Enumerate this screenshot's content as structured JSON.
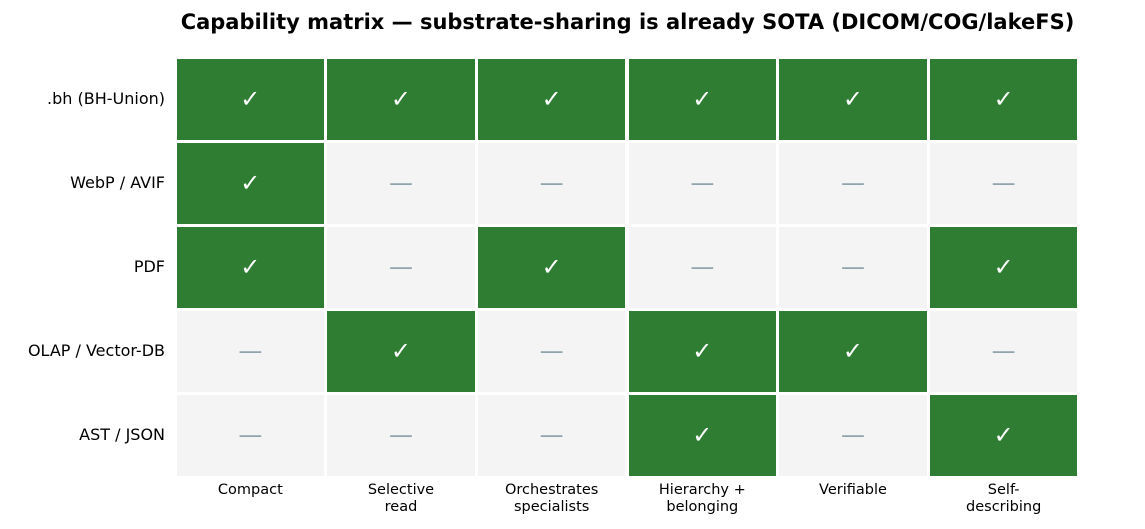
{
  "chart_data": {
    "type": "heatmap",
    "title": "Capability matrix — substrate-sharing is already SOTA (DICOM/COG/lakeFS)",
    "rows": [
      ".bh (BH-Union)",
      "WebP / AVIF",
      "PDF",
      "OLAP / Vector-DB",
      "AST / JSON"
    ],
    "columns": [
      "Compact",
      "Selective\nread",
      "Orchestrates\nspecialists",
      "Hierarchy +\nbelonging",
      "Verifiable",
      "Self-\ndescribing"
    ],
    "values": [
      [
        1,
        1,
        1,
        1,
        1,
        1
      ],
      [
        1,
        0,
        0,
        0,
        0,
        0
      ],
      [
        1,
        0,
        1,
        0,
        0,
        1
      ],
      [
        0,
        1,
        0,
        1,
        1,
        0
      ],
      [
        0,
        0,
        0,
        1,
        0,
        1
      ]
    ],
    "value_labels": [
      [
        "✓",
        "✓",
        "✓",
        "✓",
        "✓",
        "✓"
      ],
      [
        "✓",
        "—",
        "—",
        "—",
        "—",
        "—"
      ],
      [
        "✓",
        "—",
        "✓",
        "—",
        "—",
        "✓"
      ],
      [
        "—",
        "✓",
        "—",
        "✓",
        "✓",
        "—"
      ],
      [
        "—",
        "—",
        "—",
        "✓",
        "—",
        "✓"
      ]
    ],
    "colors": [
      "#f4f4f4",
      "#2e7d32"
    ],
    "label_colors": [
      "#90a4ae",
      "#ffffff"
    ]
  }
}
